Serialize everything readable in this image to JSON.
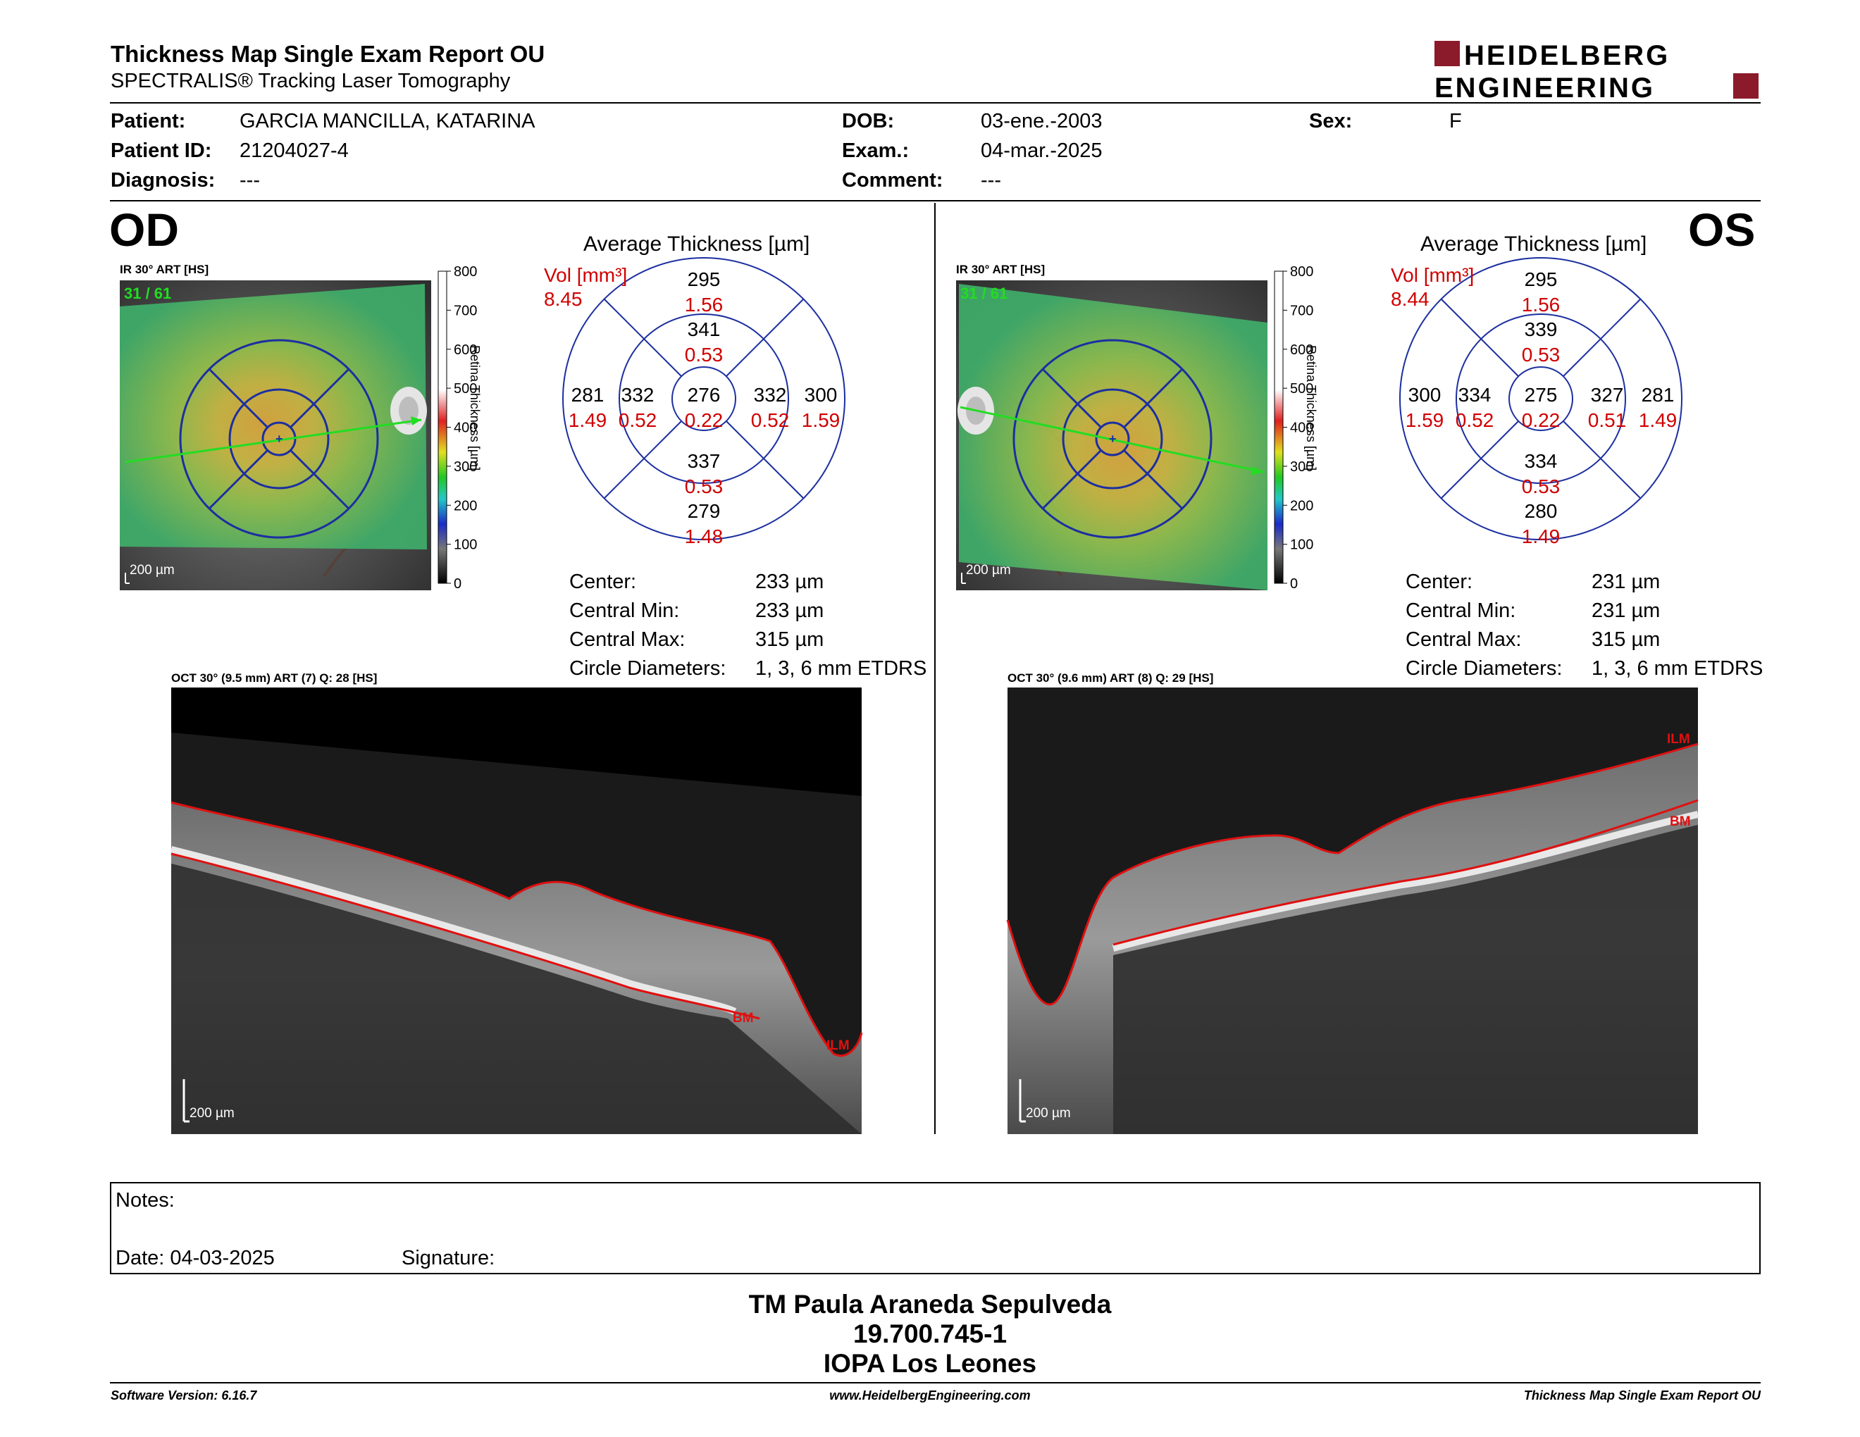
{
  "header": {
    "title": "Thickness Map Single Exam Report OU",
    "subtitle": "SPECTRALIS® Tracking Laser Tomography",
    "logo_line1": "HEIDELBERG",
    "logo_line2": "ENGINEERING"
  },
  "patient": {
    "patient_label": "Patient:",
    "patient_value": "GARCIA MANCILLA, KATARINA",
    "patient_id_label": "Patient ID:",
    "patient_id_value": "21204027-4",
    "diagnosis_label": "Diagnosis:",
    "diagnosis_value": "---",
    "dob_label": "DOB:",
    "dob_value": "03-ene.-2003",
    "exam_label": "Exam.:",
    "exam_value": "04-mar.-2025",
    "comment_label": "Comment:",
    "comment_value": "---",
    "sex_label": "Sex:",
    "sex_value": "F"
  },
  "od": {
    "eye_label": "OD",
    "ir_caption": "IR 30° ART [HS]",
    "frame_counter": "31 / 61",
    "ir_scale": "200 µm",
    "colorbar_ticks": [
      "800",
      "700",
      "600",
      "500",
      "400",
      "300",
      "200",
      "100",
      "0"
    ],
    "colorbar_label": "Retina Thickness [µm]",
    "avg_title": "Average Thickness [µm]",
    "vol_label": "Vol [mm³]",
    "vol_value": "8.45",
    "sectors": {
      "outer_top": {
        "t": "295",
        "v": "1.56"
      },
      "inner_top": {
        "t": "341",
        "v": "0.53"
      },
      "outer_nasal_left": {
        "t": "281",
        "v": "1.49"
      },
      "inner_left": {
        "t": "332",
        "v": "0.52"
      },
      "center": {
        "t": "276",
        "v": "0.22"
      },
      "inner_right": {
        "t": "332",
        "v": "0.52"
      },
      "outer_right": {
        "t": "300",
        "v": "1.59"
      },
      "inner_bottom": {
        "t": "337",
        "v": "0.53"
      },
      "outer_bottom": {
        "t": "279",
        "v": "1.48"
      }
    },
    "stats": [
      {
        "label": "Center:",
        "value": "233 µm"
      },
      {
        "label": "Central Min:",
        "value": "233 µm"
      },
      {
        "label": "Central Max:",
        "value": "315 µm"
      },
      {
        "label": "Circle Diameters:",
        "value": "1, 3, 6 mm ETDRS"
      }
    ],
    "oct_caption": "OCT 30° (9.5 mm) ART (7) Q: 28 [HS]",
    "oct_scale": "200 µm",
    "ilm_label": "ILM",
    "bm_label": "BM"
  },
  "os": {
    "eye_label": "OS",
    "ir_caption": "IR 30° ART [HS]",
    "frame_counter": "31 / 61",
    "ir_scale": "200 µm",
    "colorbar_ticks": [
      "800",
      "700",
      "600",
      "500",
      "400",
      "300",
      "200",
      "100",
      "0"
    ],
    "colorbar_label": "Retina Thickness [µm]",
    "avg_title": "Average Thickness [µm]",
    "vol_label": "Vol [mm³]",
    "vol_value": "8.44",
    "sectors": {
      "outer_top": {
        "t": "295",
        "v": "1.56"
      },
      "inner_top": {
        "t": "339",
        "v": "0.53"
      },
      "outer_nasal_left": {
        "t": "300",
        "v": "1.59"
      },
      "inner_left": {
        "t": "334",
        "v": "0.52"
      },
      "center": {
        "t": "275",
        "v": "0.22"
      },
      "inner_right": {
        "t": "327",
        "v": "0.51"
      },
      "outer_right": {
        "t": "281",
        "v": "1.49"
      },
      "inner_bottom": {
        "t": "334",
        "v": "0.53"
      },
      "outer_bottom": {
        "t": "280",
        "v": "1.49"
      }
    },
    "stats": [
      {
        "label": "Center:",
        "value": "231 µm"
      },
      {
        "label": "Central Min:",
        "value": "231 µm"
      },
      {
        "label": "Central Max:",
        "value": "315 µm"
      },
      {
        "label": "Circle Diameters:",
        "value": "1, 3, 6 mm ETDRS"
      }
    ],
    "oct_caption": "OCT 30° (9.6 mm) ART (8) Q: 29 [HS]",
    "oct_scale": "200 µm",
    "ilm_label": "ILM",
    "bm_label": "BM"
  },
  "notes": {
    "notes_label": "Notes:",
    "date_label": "Date: 04-03-2025",
    "signature_label": "Signature:"
  },
  "signoff": {
    "name": "TM Paula Araneda Sepulveda",
    "id": "19.700.745-1",
    "org": "IOPA Los Leones"
  },
  "footer": {
    "software": "Software Version: 6.16.7",
    "website": "www.HeidelbergEngineering.com",
    "report": "Thickness Map Single Exam Report OU"
  },
  "colors": {
    "vol_red": "#d00000",
    "grid_blue": "#1c2fa0",
    "logo_red": "#8b1a2b",
    "ilm_red": "#e01010"
  }
}
